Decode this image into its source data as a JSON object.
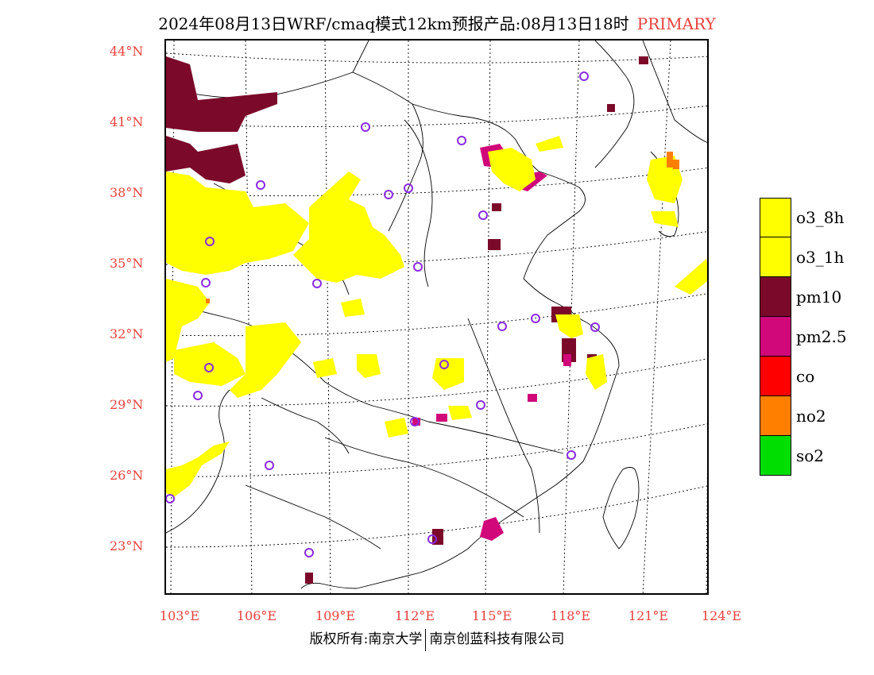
{
  "title": {
    "main": "2024年08月13日WRF/cmaq模式12km预报产品:08月13日18时",
    "primary_label": "PRIMARY"
  },
  "axes": {
    "lat_labels": [
      "44°N",
      "41°N",
      "38°N",
      "35°N",
      "32°N",
      "29°N",
      "26°N",
      "23°N"
    ],
    "lon_labels": [
      "103°E",
      "106°E",
      "109°E",
      "112°E",
      "115°E",
      "118°E",
      "121°E",
      "124°E"
    ]
  },
  "legend": [
    {
      "label": "o3_8h",
      "color": "#ffff00"
    },
    {
      "label": "o3_1h",
      "color": "#ffff00"
    },
    {
      "label": "pm10",
      "color": "#7b0a2a"
    },
    {
      "label": "pm2.5",
      "color": "#d0087a"
    },
    {
      "label": "co",
      "color": "#ff0000"
    },
    {
      "label": "no2",
      "color": "#ff7f00"
    },
    {
      "label": "so2",
      "color": "#00dd00"
    }
  ],
  "footer": {
    "left": "版权所有:南京大学",
    "right": "南京创蓝科技有限公司"
  },
  "colors": {
    "accent_red": "#e8413c",
    "o3": "#ffff00",
    "pm10": "#7b0a2a",
    "pm25": "#d0087a",
    "no2": "#ff7f00",
    "station": "#8a2be2"
  }
}
